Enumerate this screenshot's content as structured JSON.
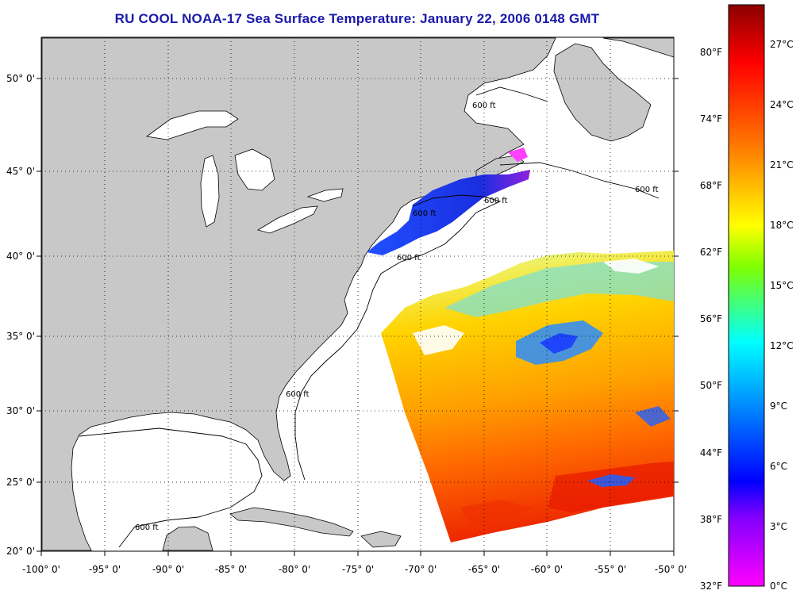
{
  "title": "RU COOL  NOAA-17  Sea Surface Temperature:  January 22, 2006 0148 GMT",
  "map": {
    "lon_labels": [
      "-100° 0'",
      "-95° 0'",
      "-90° 0'",
      "-85° 0'",
      "-80° 0'",
      "-75° 0'",
      "-70° 0'",
      "-65° 0'",
      "-60° 0'",
      "-55° 0'",
      "-50° 0'"
    ],
    "lat_labels": [
      "50° 0'",
      "45° 0'",
      "40° 0'",
      "35° 0'",
      "30° 0'",
      "25° 0'",
      "20° 0'"
    ],
    "contour_label": "600 ft",
    "colors": {
      "land": "#c8c8c8",
      "water": "#ffffff",
      "coast": "#000000",
      "grid": "#000000"
    }
  },
  "colorbar": {
    "f_labels": [
      "80°F",
      "74°F",
      "68°F",
      "62°F",
      "56°F",
      "50°F",
      "44°F",
      "38°F",
      "32°F"
    ],
    "c_labels": [
      "27°C",
      "24°C",
      "21°C",
      "18°C",
      "15°C",
      "12°C",
      "9°C",
      "6°C",
      "3°C",
      "0°C"
    ],
    "gradient": [
      "#8b0000",
      "#ff0000",
      "#ff7f00",
      "#ffff00",
      "#80ff00",
      "#00ffff",
      "#0080ff",
      "#0000ff",
      "#8000ff",
      "#ff00ff"
    ]
  }
}
